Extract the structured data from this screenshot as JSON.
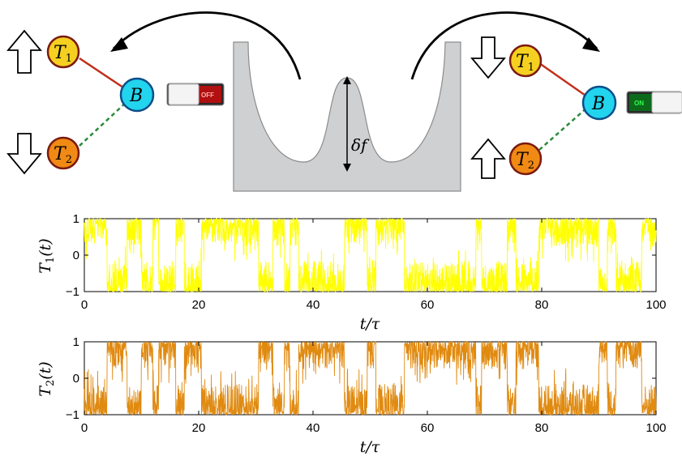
{
  "diagram": {
    "left_state": {
      "T1_label": "T",
      "T1_sub": "1",
      "T2_label": "T",
      "T2_sub": "2",
      "B_label": "B",
      "T1_spin": "up",
      "T2_spin": "down",
      "switch_text": "OFF"
    },
    "right_state": {
      "T1_label": "T",
      "T1_sub": "1",
      "T2_label": "T",
      "T2_sub": "2",
      "B_label": "B",
      "T1_spin": "down",
      "T2_spin": "up",
      "switch_text": "ON"
    },
    "barrier_label": "δf",
    "colors": {
      "T1_node": "#f5d020",
      "T2_node": "#f08a14",
      "B_node": "#22d4ee",
      "node_border": "#7a1a10",
      "T1_bond": "#c0301a",
      "T2_bond": "#2a8a3a",
      "potential_fill": "#cfd0d2",
      "switch_off": "#b01010",
      "switch_on": "#0c6a1a"
    }
  },
  "chart_data": [
    {
      "type": "line",
      "series": [
        {
          "name": "T_1(t)",
          "color": "#ffff00"
        }
      ],
      "ylabel_main": "T",
      "ylabel_sub": "1",
      "ylabel_arg": "(t)",
      "xlabel": "t/τ",
      "xlim": [
        0,
        100
      ],
      "ylim": [
        -1,
        1
      ],
      "xticks": [
        "0",
        "20",
        "40",
        "60",
        "80",
        "100"
      ],
      "yticks": [
        "−1",
        "0",
        "1"
      ],
      "state_segments": [
        [
          0,
          4,
          1
        ],
        [
          4,
          7.5,
          -1
        ],
        [
          7.5,
          10,
          1
        ],
        [
          10,
          12,
          -1
        ],
        [
          12,
          13,
          1
        ],
        [
          13,
          16,
          -1
        ],
        [
          16,
          17.5,
          1
        ],
        [
          17.5,
          20.5,
          -1
        ],
        [
          20.5,
          30.5,
          1
        ],
        [
          30.5,
          33,
          -1
        ],
        [
          33,
          35,
          1
        ],
        [
          35,
          36,
          -1
        ],
        [
          36,
          37.5,
          1
        ],
        [
          37.5,
          45.5,
          -1
        ],
        [
          45.5,
          49.5,
          1
        ],
        [
          49.5,
          51,
          -1
        ],
        [
          51,
          56,
          1
        ],
        [
          56,
          68.5,
          -1
        ],
        [
          68.5,
          69.5,
          1
        ],
        [
          69.5,
          74,
          -1
        ],
        [
          74,
          75.5,
          1
        ],
        [
          75.5,
          79.5,
          -1
        ],
        [
          79.5,
          90,
          1
        ],
        [
          90,
          91.5,
          -1
        ],
        [
          91.5,
          93,
          1
        ],
        [
          93,
          97.5,
          -1
        ],
        [
          97.5,
          100,
          1
        ]
      ]
    },
    {
      "type": "line",
      "series": [
        {
          "name": "T_2(t)",
          "color": "#e08a10"
        }
      ],
      "ylabel_main": "T",
      "ylabel_sub": "2",
      "ylabel_arg": "(t)",
      "xlabel": "t/τ",
      "xlim": [
        0,
        100
      ],
      "ylim": [
        -1,
        1
      ],
      "xticks": [
        "0",
        "20",
        "40",
        "60",
        "80",
        "100"
      ],
      "yticks": [
        "−1",
        "0",
        "1"
      ],
      "state_segments": [
        [
          0,
          4,
          -1
        ],
        [
          4,
          7.5,
          1
        ],
        [
          7.5,
          10,
          -1
        ],
        [
          10,
          12,
          1
        ],
        [
          12,
          13,
          -1
        ],
        [
          13,
          16,
          1
        ],
        [
          16,
          17.5,
          -1
        ],
        [
          17.5,
          20.5,
          1
        ],
        [
          20.5,
          30.5,
          -1
        ],
        [
          30.5,
          33,
          1
        ],
        [
          33,
          35,
          -1
        ],
        [
          35,
          36,
          1
        ],
        [
          36,
          37.5,
          -1
        ],
        [
          37.5,
          45.5,
          1
        ],
        [
          45.5,
          49.5,
          -1
        ],
        [
          49.5,
          51,
          1
        ],
        [
          51,
          56,
          -1
        ],
        [
          56,
          68.5,
          1
        ],
        [
          68.5,
          69.5,
          -1
        ],
        [
          69.5,
          74,
          1
        ],
        [
          74,
          75.5,
          -1
        ],
        [
          75.5,
          79.5,
          1
        ],
        [
          79.5,
          90,
          -1
        ],
        [
          90,
          91.5,
          1
        ],
        [
          91.5,
          93,
          -1
        ],
        [
          93,
          97.5,
          1
        ],
        [
          97.5,
          100,
          -1
        ]
      ]
    }
  ]
}
